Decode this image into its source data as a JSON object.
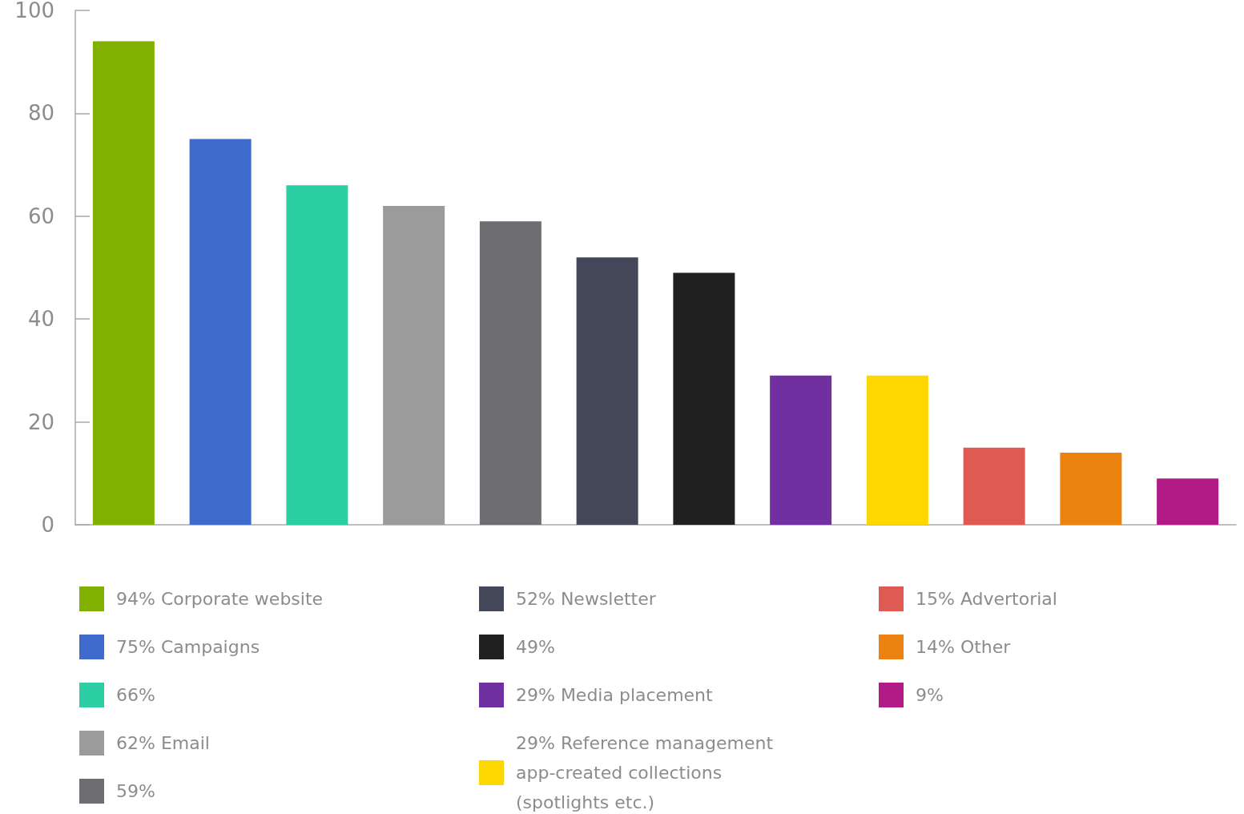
{
  "chart_data": {
    "type": "bar",
    "categories": [
      null,
      null,
      null,
      null,
      null,
      null,
      null,
      null,
      null,
      null,
      null,
      null
    ],
    "series": [
      {
        "name": "94% Corporate website",
        "color": "#80b000",
        "values": [
          94,
          null,
          null,
          null,
          null,
          null,
          null,
          null,
          null,
          null,
          null,
          null
        ]
      },
      {
        "name": "75% Campaigns",
        "color": "#3f6ccc",
        "values": [
          null,
          75,
          null,
          null,
          null,
          null,
          null,
          null,
          null,
          null,
          null,
          null
        ]
      },
      {
        "name": "66%",
        "color": "#2bcfa3",
        "values": [
          null,
          null,
          66,
          null,
          null,
          null,
          null,
          null,
          null,
          null,
          null,
          null
        ]
      },
      {
        "name": "62% Email",
        "color": "#9b9b9b",
        "values": [
          null,
          null,
          null,
          62,
          null,
          null,
          null,
          null,
          null,
          null,
          null,
          null
        ]
      },
      {
        "name": "59%",
        "color": "#6e6e72",
        "values": [
          null,
          null,
          null,
          null,
          59,
          null,
          null,
          null,
          null,
          null,
          null,
          null
        ]
      },
      {
        "name": "52% Newsletter",
        "color": "#434758",
        "values": [
          null,
          null,
          null,
          null,
          null,
          52,
          null,
          null,
          null,
          null,
          null,
          null
        ]
      },
      {
        "name": "49%",
        "color": "#202020",
        "values": [
          null,
          null,
          null,
          null,
          null,
          null,
          49,
          null,
          null,
          null,
          null,
          null
        ]
      },
      {
        "name": "29% Media placement",
        "color": "#7130a0",
        "values": [
          null,
          null,
          null,
          null,
          null,
          null,
          null,
          29,
          null,
          null,
          null,
          null
        ]
      },
      {
        "name": "29% Reference management app-created collections (spotlights etc.)",
        "color": "#ffd700",
        "values": [
          null,
          null,
          null,
          null,
          null,
          null,
          null,
          null,
          29,
          null,
          null,
          null
        ]
      },
      {
        "name": "15% Advertorial",
        "color": "#de5a52",
        "values": [
          null,
          null,
          null,
          null,
          null,
          null,
          null,
          null,
          null,
          15,
          null,
          null
        ]
      },
      {
        "name": "14% Other",
        "color": "#ec820f",
        "values": [
          null,
          null,
          null,
          null,
          null,
          null,
          null,
          null,
          null,
          null,
          14,
          null
        ]
      },
      {
        "name": "9%",
        "color": "#b21a85",
        "values": [
          null,
          null,
          null,
          null,
          null,
          null,
          null,
          null,
          null,
          null,
          null,
          9
        ]
      }
    ],
    "ylim": [
      0,
      100
    ],
    "yticks": [
      0,
      20,
      40,
      60,
      80,
      100
    ],
    "grid": false,
    "legend": "bottom",
    "tick_labels": "y"
  }
}
